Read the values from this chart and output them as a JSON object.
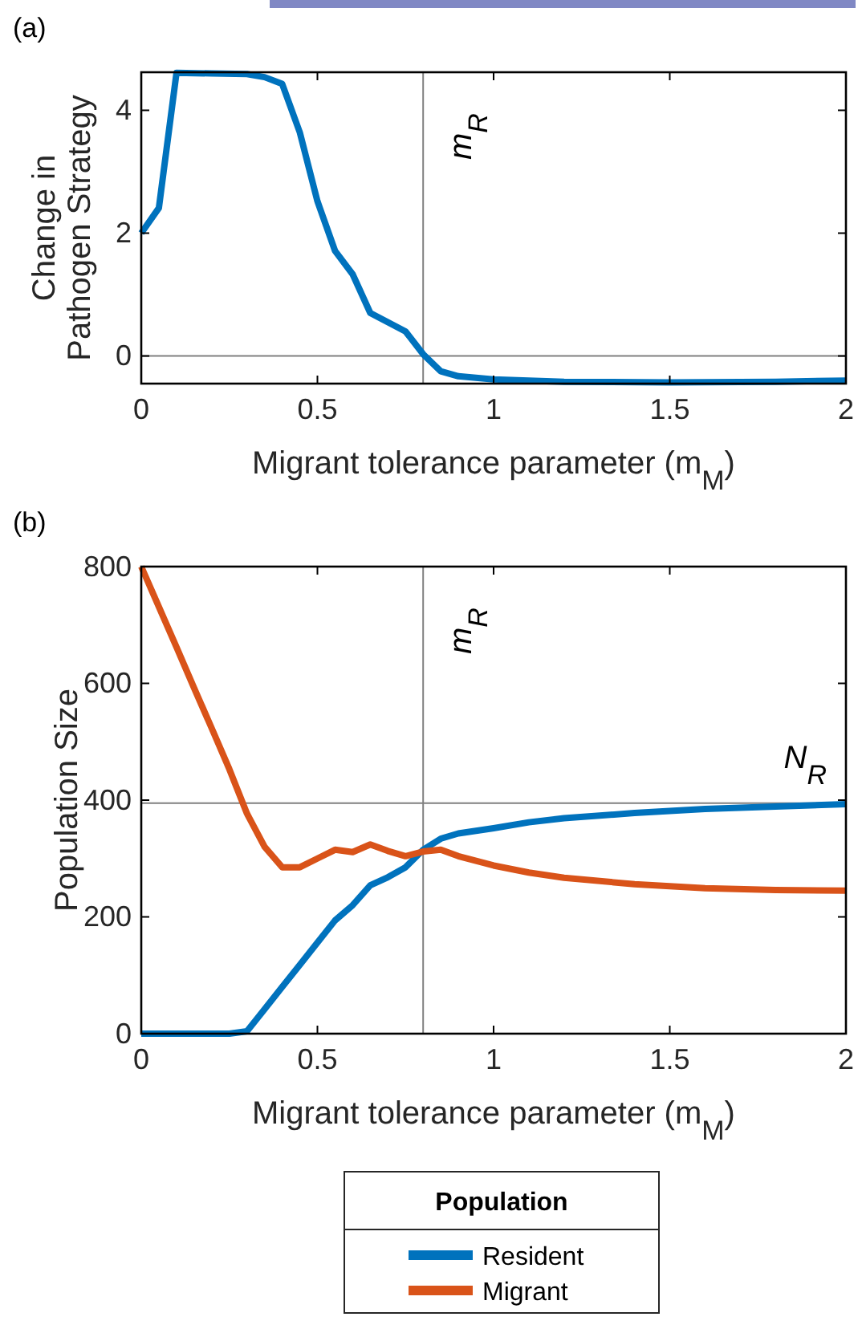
{
  "chart_data": [
    {
      "type": "line",
      "title": "(a)",
      "xlabel": "Migrant tolerance parameter (m$_{M}$)",
      "ylabel": "Change in\nPathogen Strategy",
      "xlim": [
        0,
        2
      ],
      "xticks": [
        0,
        0.5,
        1,
        1.5,
        2
      ],
      "ylim": [
        -0.45,
        4.62
      ],
      "yticks": [
        0,
        2,
        4
      ],
      "series": [
        {
          "color": "#0072bd",
          "x": [
            0,
            0.05,
            0.1,
            0.2,
            0.3,
            0.35,
            0.4,
            0.45,
            0.5,
            0.55,
            0.6,
            0.65,
            0.7,
            0.75,
            0.8,
            0.85,
            0.9,
            1.0,
            1.2,
            1.5,
            1.8,
            2.0
          ],
          "values": [
            2.0,
            2.41,
            4.61,
            4.6,
            4.59,
            4.54,
            4.43,
            3.64,
            2.52,
            1.71,
            1.33,
            0.7,
            0.55,
            0.4,
            0.03,
            -0.25,
            -0.33,
            -0.38,
            -0.42,
            -0.43,
            -0.42,
            -0.4
          ]
        }
      ],
      "ref_lines": [
        {
          "axis": "x",
          "value": 0.8,
          "label": "m$_{R}$",
          "color": "#808080"
        },
        {
          "axis": "y",
          "value": 0,
          "color": "#808080"
        }
      ]
    },
    {
      "type": "line",
      "title": "(b)",
      "xlabel": "Migrant tolerance parameter (m$_{M}$)",
      "ylabel": "Population Size",
      "xlim": [
        0,
        2
      ],
      "xticks": [
        0,
        0.5,
        1,
        1.5,
        2
      ],
      "ylim": [
        0,
        800
      ],
      "yticks": [
        0,
        200,
        400,
        600,
        800
      ],
      "legend": "bottom",
      "legend_title": "Population",
      "x": [
        0,
        0.05,
        0.1,
        0.15,
        0.2,
        0.25,
        0.3,
        0.35,
        0.4,
        0.45,
        0.5,
        0.55,
        0.6,
        0.65,
        0.7,
        0.75,
        0.8,
        0.85,
        0.9,
        1.0,
        1.1,
        1.2,
        1.4,
        1.6,
        1.8,
        2.0
      ],
      "series": [
        {
          "name": "Resident",
          "color": "#0072bd",
          "values": [
            0,
            0,
            0,
            0,
            0,
            0,
            4,
            42,
            80,
            118,
            156,
            194,
            220,
            254,
            268,
            285,
            315,
            334,
            343,
            352,
            362,
            369,
            378,
            385,
            389,
            393
          ]
        },
        {
          "name": "Migrant",
          "color": "#d95319",
          "values": [
            800,
            731,
            662,
            592,
            523,
            453,
            377,
            320,
            285,
            285,
            300,
            315,
            311,
            324,
            313,
            304,
            312,
            315,
            304,
            288,
            276,
            267,
            256,
            249,
            246,
            245
          ]
        }
      ],
      "ref_lines": [
        {
          "axis": "x",
          "value": 0.8,
          "label": "m$_{R}$",
          "color": "#808080"
        },
        {
          "axis": "y",
          "value": 395,
          "label": "N$_{R}$",
          "color": "#808080"
        }
      ]
    }
  ]
}
